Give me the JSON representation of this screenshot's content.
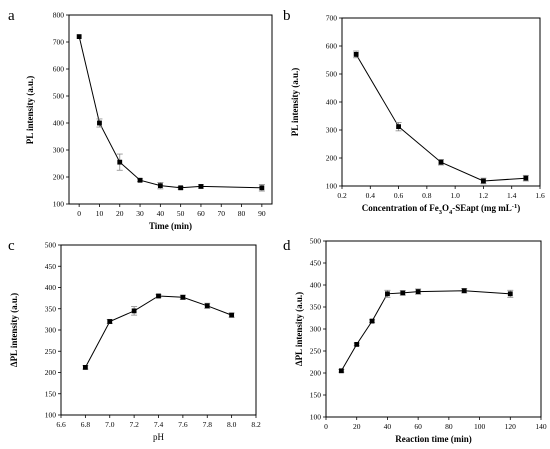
{
  "chart_data": [
    {
      "type": "line",
      "panel_letter": "a",
      "xlabel": "Time (min)",
      "ylabel": "PL intensity (a.u.)",
      "xlim": [
        -5,
        95
      ],
      "ylim": [
        100,
        800
      ],
      "xticks": [
        0,
        10,
        20,
        30,
        40,
        50,
        60,
        70,
        80,
        90
      ],
      "yticks": [
        100,
        200,
        300,
        400,
        500,
        600,
        700,
        800
      ],
      "x": [
        0,
        10,
        20,
        30,
        40,
        50,
        60,
        90
      ],
      "y": [
        720,
        400,
        255,
        188,
        168,
        160,
        165,
        160
      ],
      "err": [
        0,
        15,
        30,
        5,
        12,
        5,
        6,
        12
      ]
    },
    {
      "type": "line",
      "panel_letter": "b",
      "xlabel_parts": [
        "Concentration of  Fe",
        "3",
        "O",
        "4",
        "-SEapt (mg mL",
        "-1",
        ")"
      ],
      "ylabel": "PL intensity (a.u.)",
      "xlim": [
        0.2,
        1.6
      ],
      "ylim": [
        100,
        700
      ],
      "xticks": [
        0.2,
        0.4,
        0.6,
        0.8,
        1.0,
        1.2,
        1.4,
        1.6
      ],
      "yticks": [
        100,
        200,
        300,
        400,
        500,
        600,
        700
      ],
      "x": [
        0.3,
        0.6,
        0.9,
        1.2,
        1.5
      ],
      "y": [
        570,
        312,
        185,
        118,
        128
      ],
      "err": [
        12,
        15,
        10,
        10,
        10
      ]
    },
    {
      "type": "line",
      "panel_letter": "c",
      "xlabel": "pH",
      "ylabel": "ΔPL intensity (a.u.)",
      "xlim": [
        6.6,
        8.2
      ],
      "ylim": [
        100,
        500
      ],
      "xticks": [
        6.6,
        6.8,
        7.0,
        7.2,
        7.4,
        7.6,
        7.8,
        8.0,
        8.2
      ],
      "yticks": [
        100,
        150,
        200,
        250,
        300,
        350,
        400,
        450,
        500
      ],
      "x": [
        6.8,
        7.0,
        7.2,
        7.4,
        7.6,
        7.8,
        8.0
      ],
      "y": [
        212,
        320,
        345,
        380,
        377,
        357,
        335
      ],
      "err": [
        4,
        5,
        10,
        4,
        5,
        6,
        5
      ]
    },
    {
      "type": "line",
      "panel_letter": "d",
      "xlabel": "Reaction time (min)",
      "ylabel": "ΔPL intensity (a.u.)",
      "xlim": [
        0,
        140
      ],
      "ylim": [
        100,
        500
      ],
      "xticks": [
        0,
        20,
        40,
        60,
        80,
        100,
        120,
        140
      ],
      "yticks": [
        100,
        150,
        200,
        250,
        300,
        350,
        400,
        450,
        500
      ],
      "x": [
        10,
        20,
        30,
        40,
        50,
        60,
        90,
        120
      ],
      "y": [
        205,
        265,
        318,
        380,
        382,
        385,
        387,
        380
      ],
      "err": [
        3,
        3,
        3,
        8,
        5,
        6,
        5,
        8
      ]
    }
  ]
}
